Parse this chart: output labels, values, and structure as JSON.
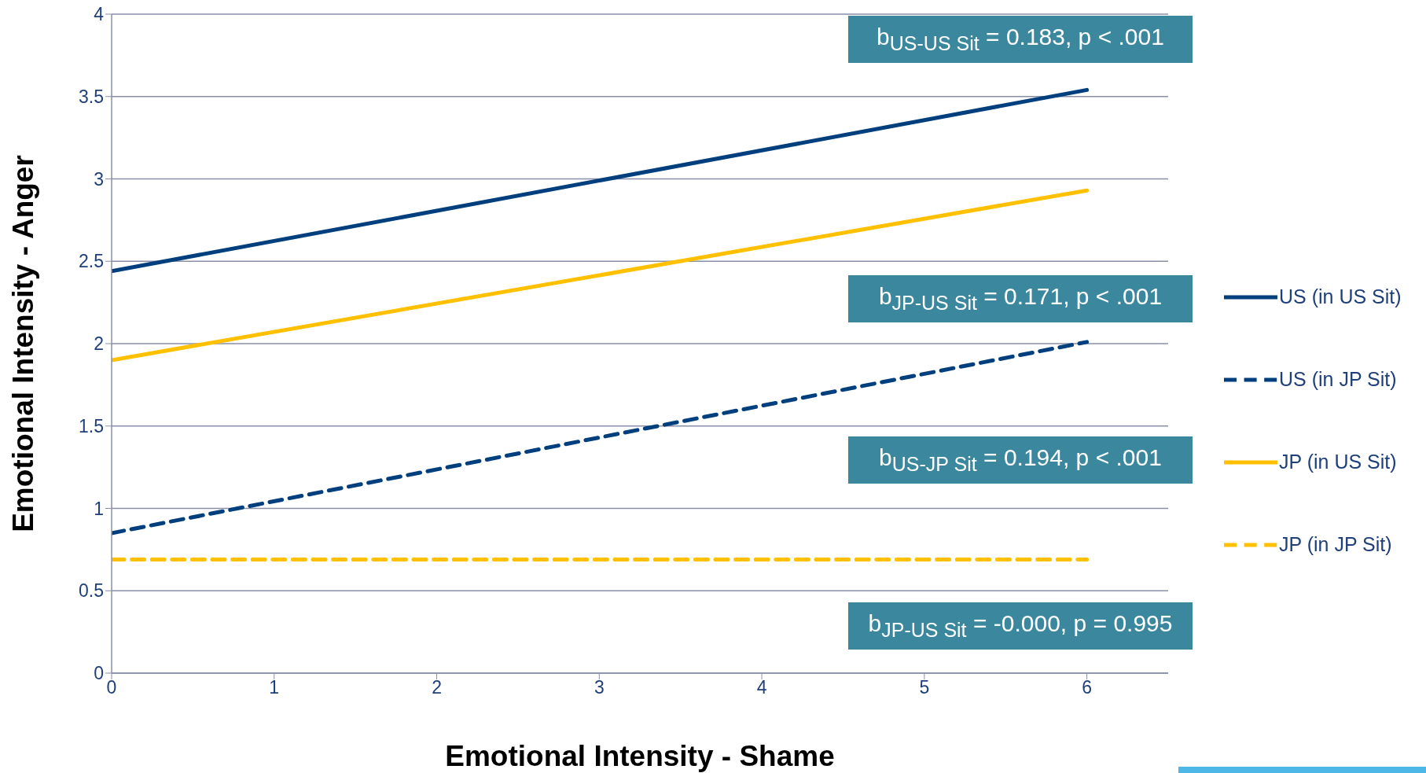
{
  "chart_data": {
    "type": "line",
    "xlabel": "Emotional Intensity - Shame",
    "ylabel": "Emotional Intensity - Anger",
    "x": [
      0,
      6
    ],
    "xlim": [
      0,
      6.5
    ],
    "xticks": [
      0,
      1,
      2,
      3,
      4,
      5,
      6
    ],
    "ylim": [
      0,
      4
    ],
    "yticks": [
      0,
      0.5,
      1,
      1.5,
      2,
      2.5,
      3,
      3.5,
      4
    ],
    "grid": "y",
    "legend": "right",
    "marker": "none",
    "series": [
      {
        "name": "US (in US Sit)",
        "color": "#003f7d",
        "values": [
          2.44,
          3.54
        ],
        "line_style": "solid"
      },
      {
        "name": "US (in JP Sit)",
        "color": "#003f7d",
        "values": [
          0.85,
          2.01
        ],
        "line_style": "dashed"
      },
      {
        "name": "JP (in US Sit)",
        "color": "#ffc000",
        "values": [
          1.9,
          2.93
        ],
        "line_style": "solid"
      },
      {
        "name": "JP (in JP Sit)",
        "color": "#ffc000",
        "values": [
          0.69,
          0.69
        ],
        "line_style": "dashed"
      }
    ],
    "annotations": [
      "b$_{US-US Sit}$ = 0.183, p < .001",
      "b$_{JP-US Sit}$ = 0.171, p < .001",
      "b$_{US-JP Sit}$ = 0.194, p < .001",
      "b$_{JP-US Sit}$ = -0.000, p = 0.995"
    ]
  }
}
